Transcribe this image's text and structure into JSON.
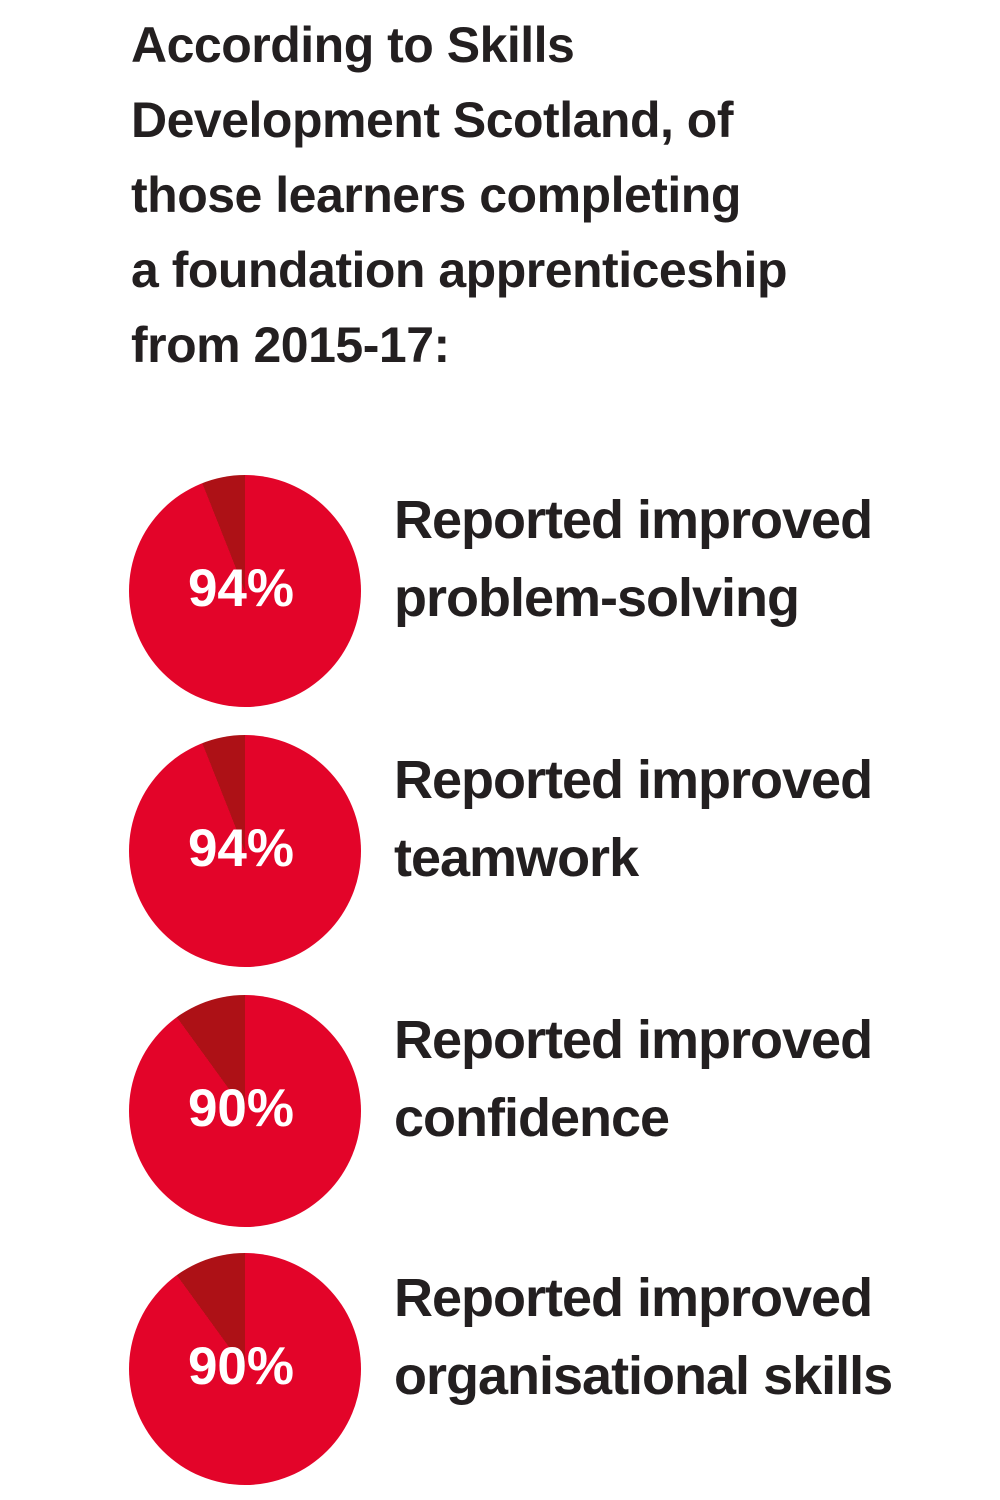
{
  "page": {
    "language": "en",
    "kind": "infographic"
  },
  "colors": {
    "page_bg": "#ffffff",
    "heading_text": "#231f20",
    "caption_text": "#231f20",
    "percent_text": "#ffffff"
  },
  "heading": {
    "text": "According to Skills Development Scotland, of those learners completing a foundation apprenticeship from 2015-17:",
    "lines": [
      "According to Skills",
      "Development Scotland, of",
      "those learners completing",
      "a foundation apprenticeship",
      "from 2015-17:"
    ]
  },
  "chart_data": {
    "type": "pie",
    "unit": "%",
    "legend": "none",
    "colors": {
      "main": "#e30429",
      "slice": "#ad1116"
    },
    "items": [
      {
        "percent": 94,
        "remainder": 6,
        "values": [
          94,
          6
        ],
        "center_label": "94%",
        "caption": "Reported improved problem-solving",
        "caption_lines": [
          "Reported improved",
          "problem-solving"
        ]
      },
      {
        "percent": 94,
        "remainder": 6,
        "values": [
          94,
          6
        ],
        "center_label": "94%",
        "caption": "Reported improved teamwork",
        "caption_lines": [
          "Reported improved",
          "teamwork"
        ]
      },
      {
        "percent": 90,
        "remainder": 10,
        "values": [
          90,
          10
        ],
        "center_label": "90%",
        "caption": "Reported improved confidence",
        "caption_lines": [
          "Reported improved",
          "confidence"
        ]
      },
      {
        "percent": 90,
        "remainder": 10,
        "values": [
          90,
          10
        ],
        "center_label": "90%",
        "caption": "Reported improved organisational skills",
        "caption_lines": [
          "Reported improved",
          "organisational skills"
        ]
      }
    ]
  }
}
